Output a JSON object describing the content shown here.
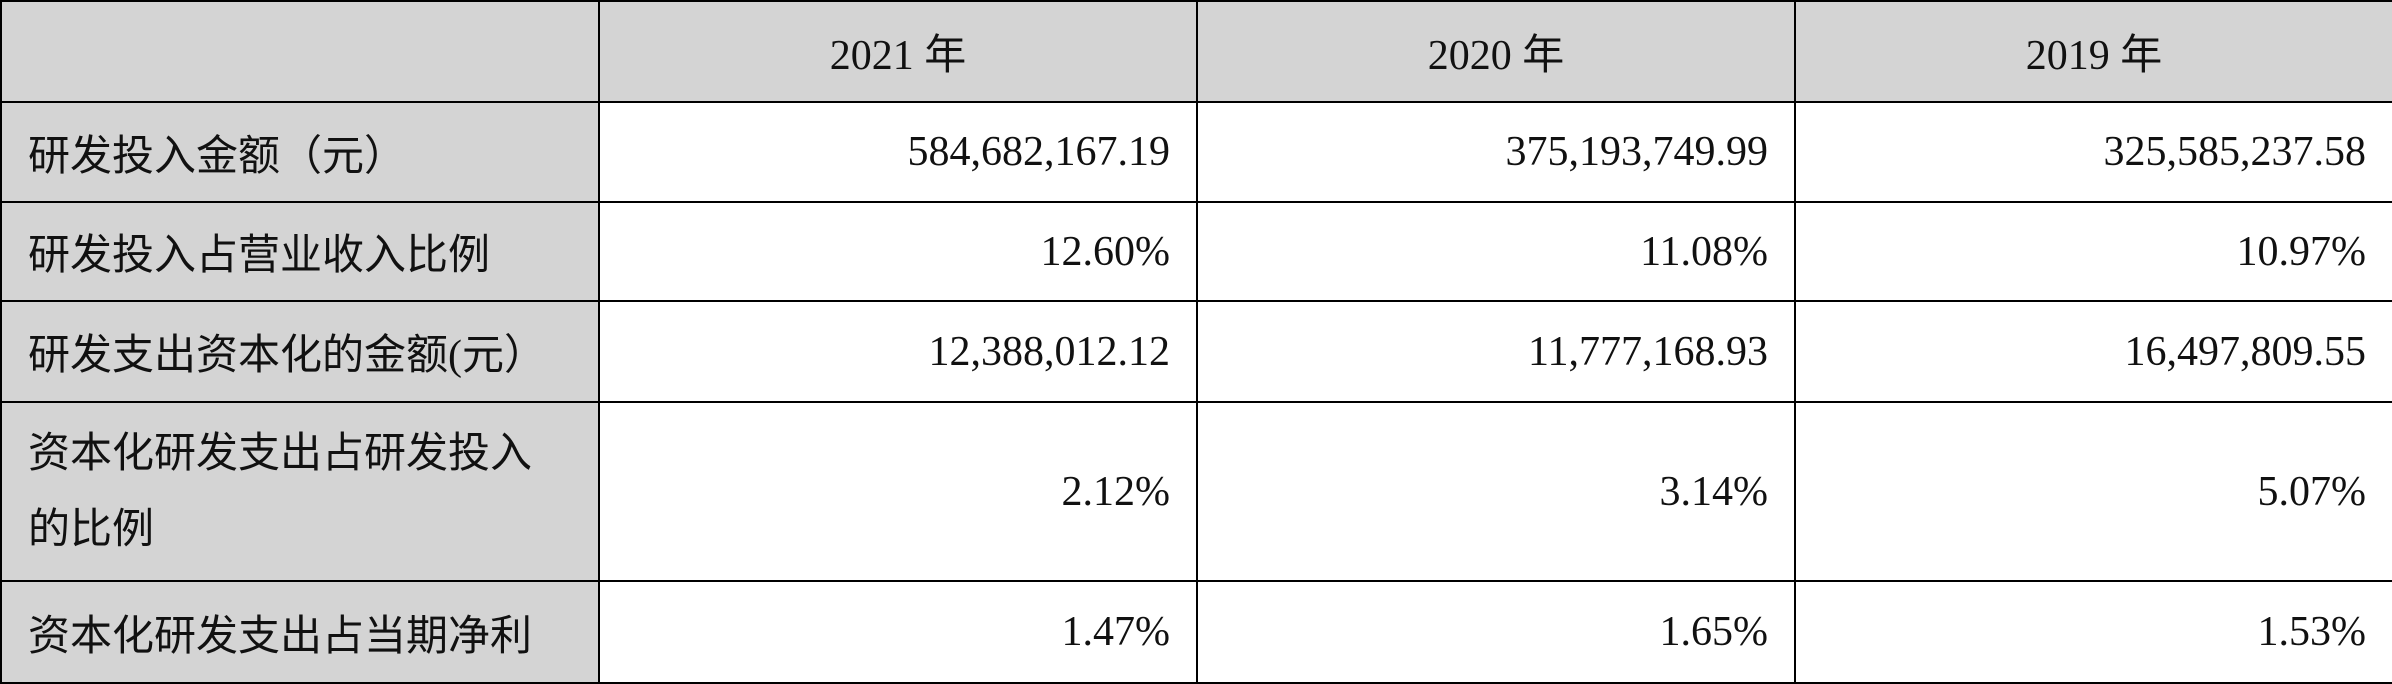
{
  "table": {
    "columns": [
      "",
      "2021 年",
      "2020 年",
      "2019 年"
    ],
    "rows": [
      [
        "研发投入金额（元）",
        "584,682,167.19",
        "375,193,749.99",
        "325,585,237.58"
      ],
      [
        "研发投入占营业收入比例",
        "12.60%",
        "11.08%",
        "10.97%"
      ],
      [
        "研发支出资本化的金额(元）",
        "12,388,012.12",
        "11,777,168.93",
        "16,497,809.55"
      ],
      [
        "资本化研发支出占研发投入的比例",
        "2.12%",
        "3.14%",
        "5.07%"
      ],
      [
        "资本化研发支出占当期净利",
        "1.47%",
        "1.65%",
        "1.53%"
      ]
    ]
  }
}
